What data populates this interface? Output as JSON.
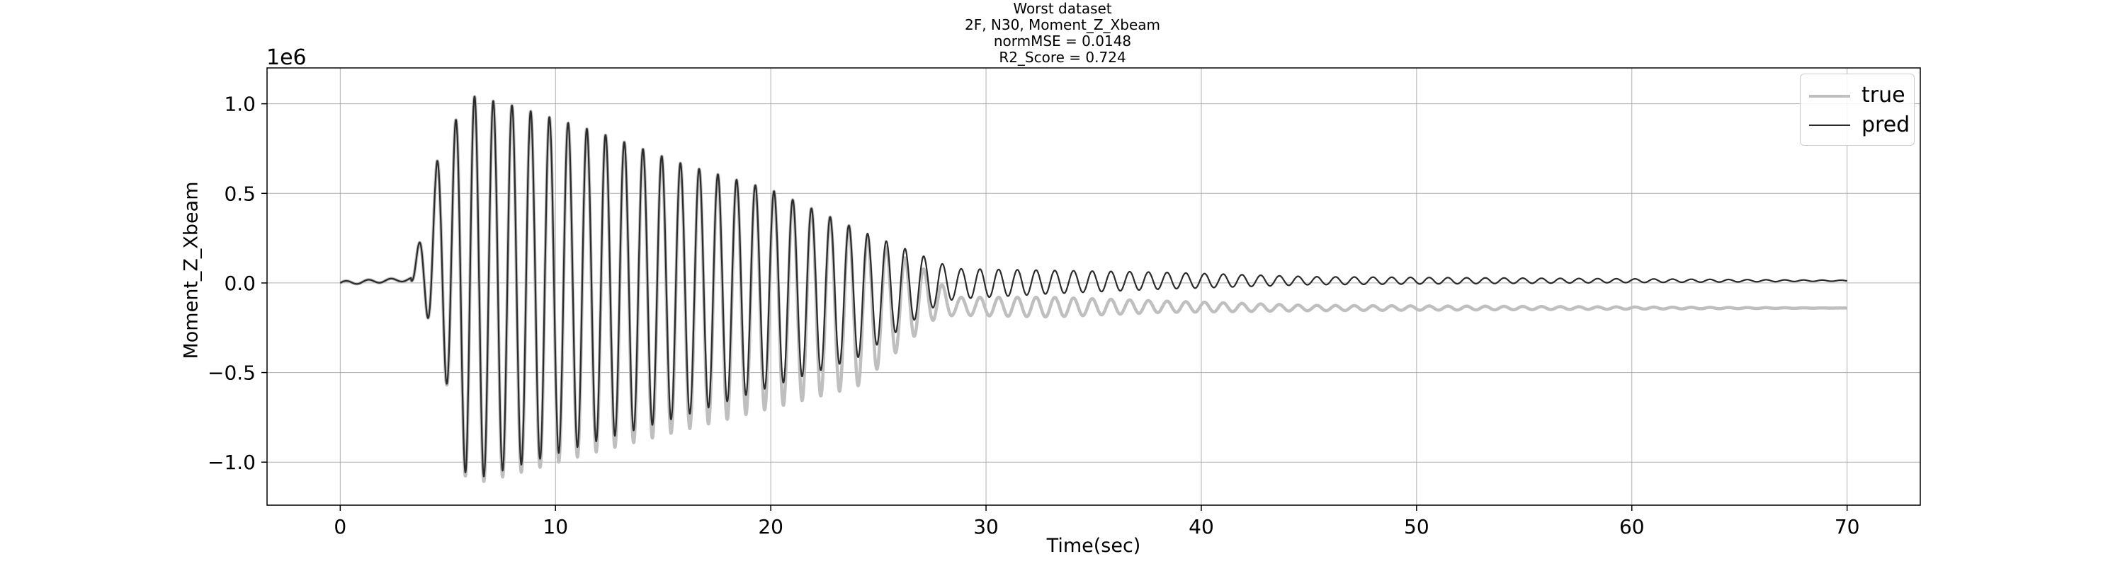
{
  "chart_data": {
    "type": "line",
    "title_lines": [
      "Worst dataset",
      "2F, N30, Moment_Z_Xbeam",
      "normMSE = 0.0148",
      "R2_Score = 0.724"
    ],
    "xlabel": "Time(sec)",
    "ylabel": "Moment_Z_Xbeam",
    "y_offset_label": "1e6",
    "xlim": [
      -3.4,
      73.4
    ],
    "ylim": [
      -1.24,
      1.2
    ],
    "x_ticks": [
      0,
      10,
      20,
      30,
      40,
      50,
      60,
      70
    ],
    "x_tick_labels": [
      "0",
      "10",
      "20",
      "30",
      "40",
      "50",
      "60",
      "70"
    ],
    "y_ticks": [
      -1.0,
      -0.5,
      0.0,
      0.5,
      1.0
    ],
    "y_tick_labels": [
      "−1.0",
      "−0.5",
      "0.0",
      "0.5",
      "1.0"
    ],
    "grid": true,
    "legend_position": "top-right",
    "series": [
      {
        "name": "true",
        "color": "#bfbfbf",
        "line_width": 4.5,
        "x": [
          0,
          3.3,
          4.5,
          5.9,
          8.0,
          12.0,
          16.0,
          20.0,
          24.0,
          27.5,
          28.5,
          33.0,
          38.0,
          45.0,
          70.0
        ],
        "peak": [
          0.0,
          0.03,
          0.68,
          1.05,
          0.99,
          0.84,
          0.66,
          0.52,
          0.3,
          0.05,
          -0.08,
          -0.08,
          -0.1,
          -0.125,
          -0.14
        ],
        "trough": [
          0.0,
          0.01,
          -0.31,
          -1.13,
          -1.07,
          -0.94,
          -0.82,
          -0.7,
          -0.58,
          -0.21,
          -0.18,
          -0.19,
          -0.165,
          -0.155,
          -0.14
        ]
      },
      {
        "name": "pred",
        "color": "#2b2b2b",
        "line_width": 2.2,
        "x": [
          0,
          3.3,
          4.5,
          5.9,
          8.0,
          12.0,
          16.0,
          20.0,
          24.0,
          27.5,
          28.5,
          33.0,
          38.0,
          45.0,
          70.0
        ],
        "peak": [
          0.0,
          0.03,
          0.68,
          1.05,
          0.99,
          0.84,
          0.66,
          0.52,
          0.3,
          0.13,
          0.08,
          0.07,
          0.06,
          0.035,
          0.015
        ],
        "trough": [
          0.0,
          0.01,
          -0.31,
          -1.11,
          -1.03,
          -0.88,
          -0.74,
          -0.58,
          -0.42,
          -0.14,
          -0.09,
          -0.06,
          -0.035,
          -0.01,
          0.01
        ]
      }
    ],
    "oscillation_frequency_hz": 1.15
  }
}
